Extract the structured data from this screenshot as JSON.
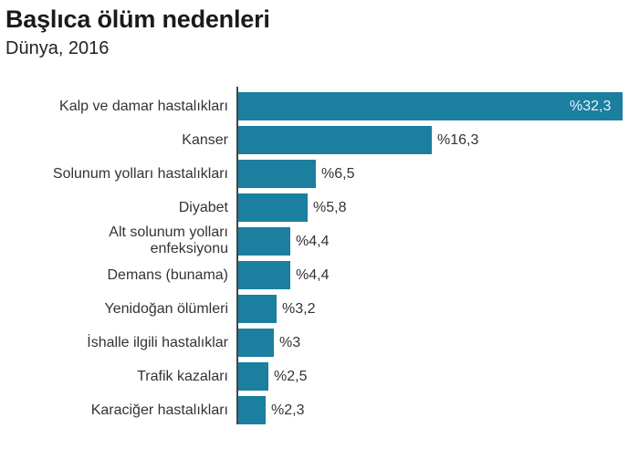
{
  "header": {
    "title": "Başlıca ölüm nedenleri",
    "subtitle": "Dünya, 2016"
  },
  "colors": {
    "bar": "#1b7f9f",
    "axis": "#444444"
  },
  "rows": [
    {
      "label": "Kalp ve damar hastalıkları",
      "value_label": "%32,3"
    },
    {
      "label": "Kanser",
      "value_label": "%16,3"
    },
    {
      "label": "Solunum yolları hastalıkları",
      "value_label": "%6,5"
    },
    {
      "label": "Diyabet",
      "value_label": "%5,8"
    },
    {
      "label": "Alt solunum yolları enfeksiyonu",
      "value_label": "%4,4"
    },
    {
      "label": "Demans (bunama)",
      "value_label": "%4,4"
    },
    {
      "label": "Yenidoğan ölümleri",
      "value_label": "%3,2"
    },
    {
      "label": "İshalle ilgili hastalıklar",
      "value_label": "%3"
    },
    {
      "label": "Trafik kazaları",
      "value_label": "%2,5"
    },
    {
      "label": "Karaciğer hastalıkları",
      "value_label": "%2,3"
    }
  ],
  "chart_data": {
    "type": "bar",
    "orientation": "horizontal",
    "title": "Başlıca ölüm nedenleri",
    "subtitle": "Dünya, 2016",
    "xlabel": "",
    "ylabel": "",
    "grid": false,
    "legend": null,
    "categories": [
      "Kalp ve damar hastalıkları",
      "Kanser",
      "Solunum yolları hastalıkları",
      "Diyabet",
      "Alt solunum yolları enfeksiyonu",
      "Demans (bunama)",
      "Yenidoğan ölümleri",
      "İshalle ilgili hastalıklar",
      "Trafik kazaları",
      "Karaciğer hastalıkları"
    ],
    "values": [
      32.3,
      16.3,
      6.5,
      5.8,
      4.4,
      4.4,
      3.2,
      3.0,
      2.5,
      2.3
    ],
    "value_labels": [
      "%32,3",
      "%16,3",
      "%6,5",
      "%5,8",
      "%4,4",
      "%4,4",
      "%3,2",
      "%3",
      "%2,5",
      "%2,3"
    ],
    "unit": "%",
    "xlim": [
      0,
      32.3
    ]
  }
}
